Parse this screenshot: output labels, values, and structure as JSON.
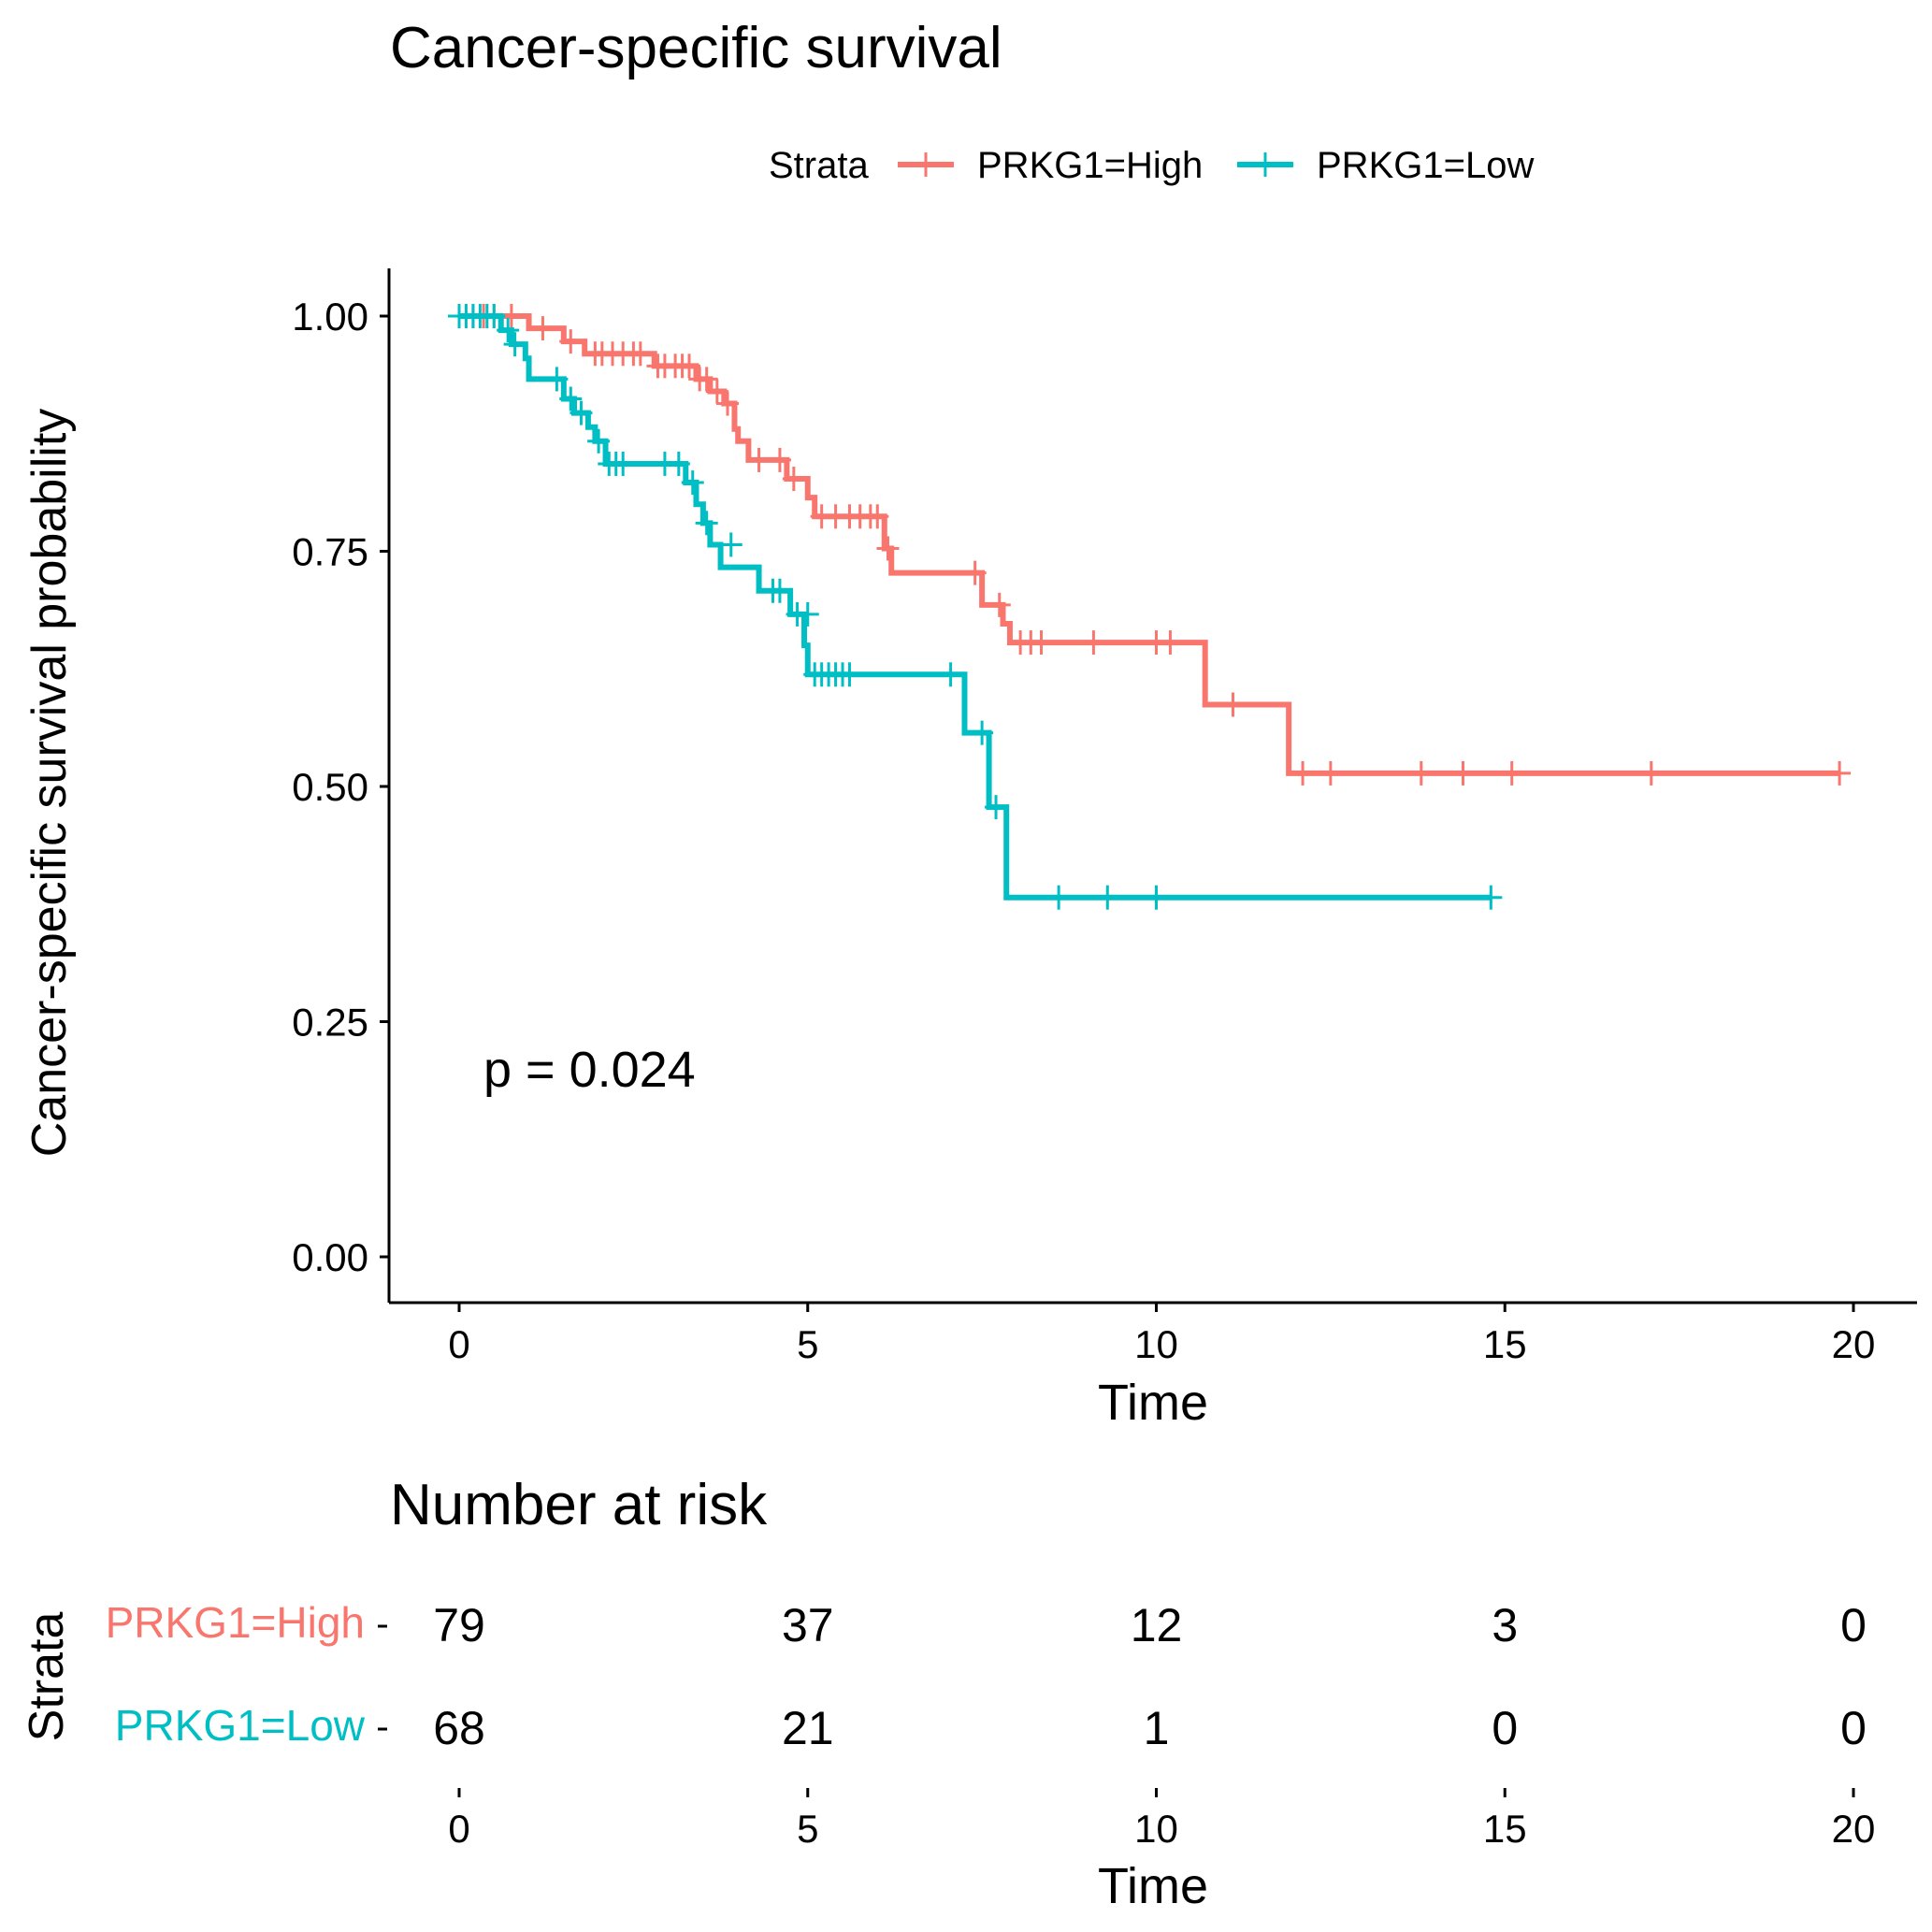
{
  "chart_data": {
    "type": "line",
    "title": "Cancer-specific survival",
    "xlabel": "Time",
    "ylabel": "Cancer-specific survival probability",
    "xlim": [
      -1,
      21
    ],
    "ylim": [
      -0.05,
      1.05
    ],
    "xticks": [
      "0",
      "5",
      "10",
      "15",
      "20"
    ],
    "yticks": [
      "0.00",
      "0.25",
      "0.50",
      "0.75",
      "1.00"
    ],
    "grid": false,
    "legend": {
      "title": "Strata",
      "position": "top"
    },
    "pvalue": "p = 0.024",
    "series": [
      {
        "name": "PRKG1=High",
        "color": "#F8766D",
        "steps": [
          [
            0,
            1.0
          ],
          [
            1.0,
            0.987
          ],
          [
            1.5,
            0.973
          ],
          [
            1.8,
            0.96
          ],
          [
            2.8,
            0.947
          ],
          [
            3.4,
            0.933
          ],
          [
            3.6,
            0.92
          ],
          [
            3.8,
            0.907
          ],
          [
            3.95,
            0.88
          ],
          [
            4.0,
            0.867
          ],
          [
            4.15,
            0.847
          ],
          [
            4.7,
            0.827
          ],
          [
            5.0,
            0.807
          ],
          [
            5.1,
            0.787
          ],
          [
            6.1,
            0.753
          ],
          [
            6.2,
            0.727
          ],
          [
            7.5,
            0.693
          ],
          [
            7.8,
            0.673
          ],
          [
            7.9,
            0.653
          ],
          [
            10.7,
            0.587
          ],
          [
            11.9,
            0.514
          ],
          [
            19.8,
            0.514
          ]
        ],
        "censors": [
          [
            0.2,
            1.0
          ],
          [
            0.35,
            1.0
          ],
          [
            0.5,
            1.0
          ],
          [
            0.75,
            1.0
          ],
          [
            1.2,
            0.987
          ],
          [
            1.6,
            0.973
          ],
          [
            1.95,
            0.96
          ],
          [
            2.05,
            0.96
          ],
          [
            2.2,
            0.96
          ],
          [
            2.35,
            0.96
          ],
          [
            2.5,
            0.96
          ],
          [
            2.6,
            0.96
          ],
          [
            2.85,
            0.947
          ],
          [
            2.95,
            0.947
          ],
          [
            3.1,
            0.947
          ],
          [
            3.2,
            0.947
          ],
          [
            3.3,
            0.947
          ],
          [
            3.45,
            0.933
          ],
          [
            3.55,
            0.933
          ],
          [
            3.7,
            0.92
          ],
          [
            3.85,
            0.907
          ],
          [
            4.3,
            0.847
          ],
          [
            4.6,
            0.847
          ],
          [
            4.8,
            0.827
          ],
          [
            5.2,
            0.787
          ],
          [
            5.4,
            0.787
          ],
          [
            5.6,
            0.787
          ],
          [
            5.75,
            0.787
          ],
          [
            5.9,
            0.787
          ],
          [
            6.0,
            0.787
          ],
          [
            6.15,
            0.753
          ],
          [
            7.4,
            0.727
          ],
          [
            7.75,
            0.693
          ],
          [
            8.05,
            0.653
          ],
          [
            8.2,
            0.653
          ],
          [
            8.35,
            0.653
          ],
          [
            9.1,
            0.653
          ],
          [
            10.0,
            0.653
          ],
          [
            10.2,
            0.653
          ],
          [
            11.1,
            0.587
          ],
          [
            12.1,
            0.514
          ],
          [
            12.5,
            0.514
          ],
          [
            13.8,
            0.514
          ],
          [
            14.4,
            0.514
          ],
          [
            15.1,
            0.514
          ],
          [
            17.1,
            0.514
          ],
          [
            19.8,
            0.514
          ]
        ]
      },
      {
        "name": "PRKG1=Low",
        "color": "#00BFC4",
        "steps": [
          [
            0,
            1.0
          ],
          [
            0.6,
            0.985
          ],
          [
            0.75,
            0.97
          ],
          [
            0.95,
            0.955
          ],
          [
            1.0,
            0.933
          ],
          [
            1.4,
            0.933
          ],
          [
            1.5,
            0.912
          ],
          [
            1.65,
            0.897
          ],
          [
            1.85,
            0.882
          ],
          [
            1.95,
            0.867
          ],
          [
            2.1,
            0.843
          ],
          [
            3.25,
            0.823
          ],
          [
            3.4,
            0.8
          ],
          [
            3.5,
            0.78
          ],
          [
            3.6,
            0.757
          ],
          [
            3.75,
            0.733
          ],
          [
            4.3,
            0.708
          ],
          [
            4.75,
            0.683
          ],
          [
            4.95,
            0.65
          ],
          [
            5.0,
            0.619
          ],
          [
            7.25,
            0.557
          ],
          [
            7.6,
            0.478
          ],
          [
            7.85,
            0.382
          ],
          [
            14.8,
            0.382
          ]
        ],
        "censors": [
          [
            0,
            1.0
          ],
          [
            0.1,
            1.0
          ],
          [
            0.2,
            1.0
          ],
          [
            0.3,
            1.0
          ],
          [
            0.4,
            1.0
          ],
          [
            0.5,
            1.0
          ],
          [
            0.7,
            0.985
          ],
          [
            0.8,
            0.97
          ],
          [
            1.4,
            0.933
          ],
          [
            1.6,
            0.912
          ],
          [
            1.75,
            0.897
          ],
          [
            2.0,
            0.867
          ],
          [
            2.15,
            0.843
          ],
          [
            2.25,
            0.843
          ],
          [
            2.35,
            0.843
          ],
          [
            2.95,
            0.843
          ],
          [
            3.15,
            0.843
          ],
          [
            3.35,
            0.823
          ],
          [
            3.55,
            0.78
          ],
          [
            3.9,
            0.757
          ],
          [
            4.5,
            0.708
          ],
          [
            4.6,
            0.708
          ],
          [
            4.85,
            0.683
          ],
          [
            5.0,
            0.683
          ],
          [
            5.1,
            0.619
          ],
          [
            5.2,
            0.619
          ],
          [
            5.3,
            0.619
          ],
          [
            5.4,
            0.619
          ],
          [
            5.5,
            0.619
          ],
          [
            5.6,
            0.619
          ],
          [
            7.05,
            0.619
          ],
          [
            7.5,
            0.557
          ],
          [
            7.7,
            0.478
          ],
          [
            8.6,
            0.382
          ],
          [
            9.3,
            0.382
          ],
          [
            10.0,
            0.382
          ],
          [
            14.8,
            0.382
          ]
        ]
      }
    ]
  },
  "risk_table": {
    "title": "Number at risk",
    "ylabel": "Strata",
    "xlabel": "Time",
    "times": [
      0,
      5,
      10,
      15,
      20
    ],
    "tick_labels": [
      "0",
      "5",
      "10",
      "15",
      "20"
    ],
    "rows": [
      {
        "label": "PRKG1=High",
        "color": "#F8766D",
        "values": [
          "79",
          "37",
          "12",
          "3",
          "0"
        ]
      },
      {
        "label": "PRKG1=Low",
        "color": "#00BFC4",
        "values": [
          "68",
          "21",
          "1",
          "0",
          "0"
        ]
      }
    ]
  }
}
